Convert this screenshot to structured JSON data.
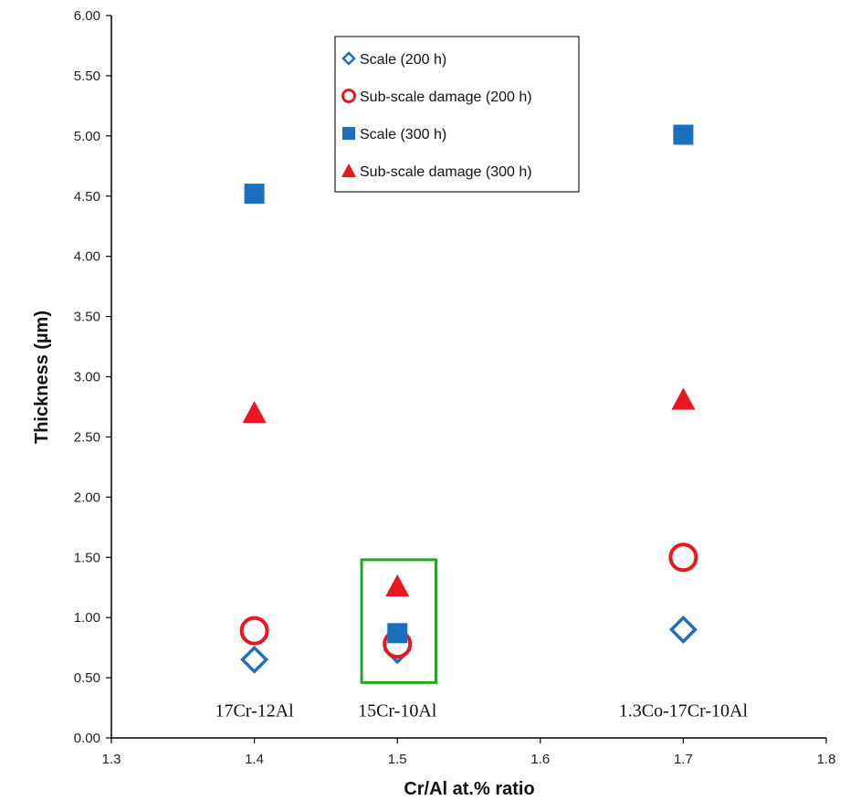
{
  "chart_data": {
    "type": "scatter",
    "xlabel": "Cr/Al at.% ratio",
    "ylabel": "Thickness (µm)",
    "xlim": [
      1.3,
      1.8
    ],
    "ylim": [
      0.0,
      6.0
    ],
    "xticks": [
      "1.3",
      "1.4",
      "1.5",
      "1.6",
      "1.7",
      "1.8"
    ],
    "yticks": [
      "0.00",
      "0.50",
      "1.00",
      "1.50",
      "2.00",
      "2.50",
      "3.00",
      "3.50",
      "4.00",
      "4.50",
      "5.00",
      "5.50",
      "6.00"
    ],
    "grid": false,
    "legend_position": "top-center",
    "series": [
      {
        "name": "Scale (200 h)",
        "marker": "diamond-open",
        "color": "#1f6fbd",
        "points": [
          {
            "x": 1.4,
            "y": 0.65
          },
          {
            "x": 1.5,
            "y": 0.73
          },
          {
            "x": 1.7,
            "y": 0.9
          }
        ]
      },
      {
        "name": "Sub-scale damage (200 h)",
        "marker": "circle-open",
        "color": "#e8191e",
        "points": [
          {
            "x": 1.4,
            "y": 0.89
          },
          {
            "x": 1.5,
            "y": 0.78
          },
          {
            "x": 1.7,
            "y": 1.5
          }
        ]
      },
      {
        "name": "Scale (300 h)",
        "marker": "square-filled",
        "color": "#1a6fbf",
        "points": [
          {
            "x": 1.4,
            "y": 4.52
          },
          {
            "x": 1.5,
            "y": 0.87
          },
          {
            "x": 1.7,
            "y": 5.01
          }
        ]
      },
      {
        "name": "Sub-scale damage (300 h)",
        "marker": "triangle-filled",
        "color": "#e8191e",
        "points": [
          {
            "x": 1.4,
            "y": 2.7
          },
          {
            "x": 1.5,
            "y": 1.26
          },
          {
            "x": 1.7,
            "y": 2.81
          }
        ]
      }
    ],
    "annotations": [
      {
        "text": "17Cr-12Al",
        "x": 1.4,
        "y": 0.18
      },
      {
        "text": "15Cr-10Al",
        "x": 1.5,
        "y": 0.18
      },
      {
        "text": "1.3Co-17Cr-10Al",
        "x": 1.7,
        "y": 0.18
      }
    ],
    "highlight_box": {
      "x": [
        1.475,
        1.527
      ],
      "y": [
        0.46,
        1.48
      ],
      "color": "#22a61f"
    }
  }
}
